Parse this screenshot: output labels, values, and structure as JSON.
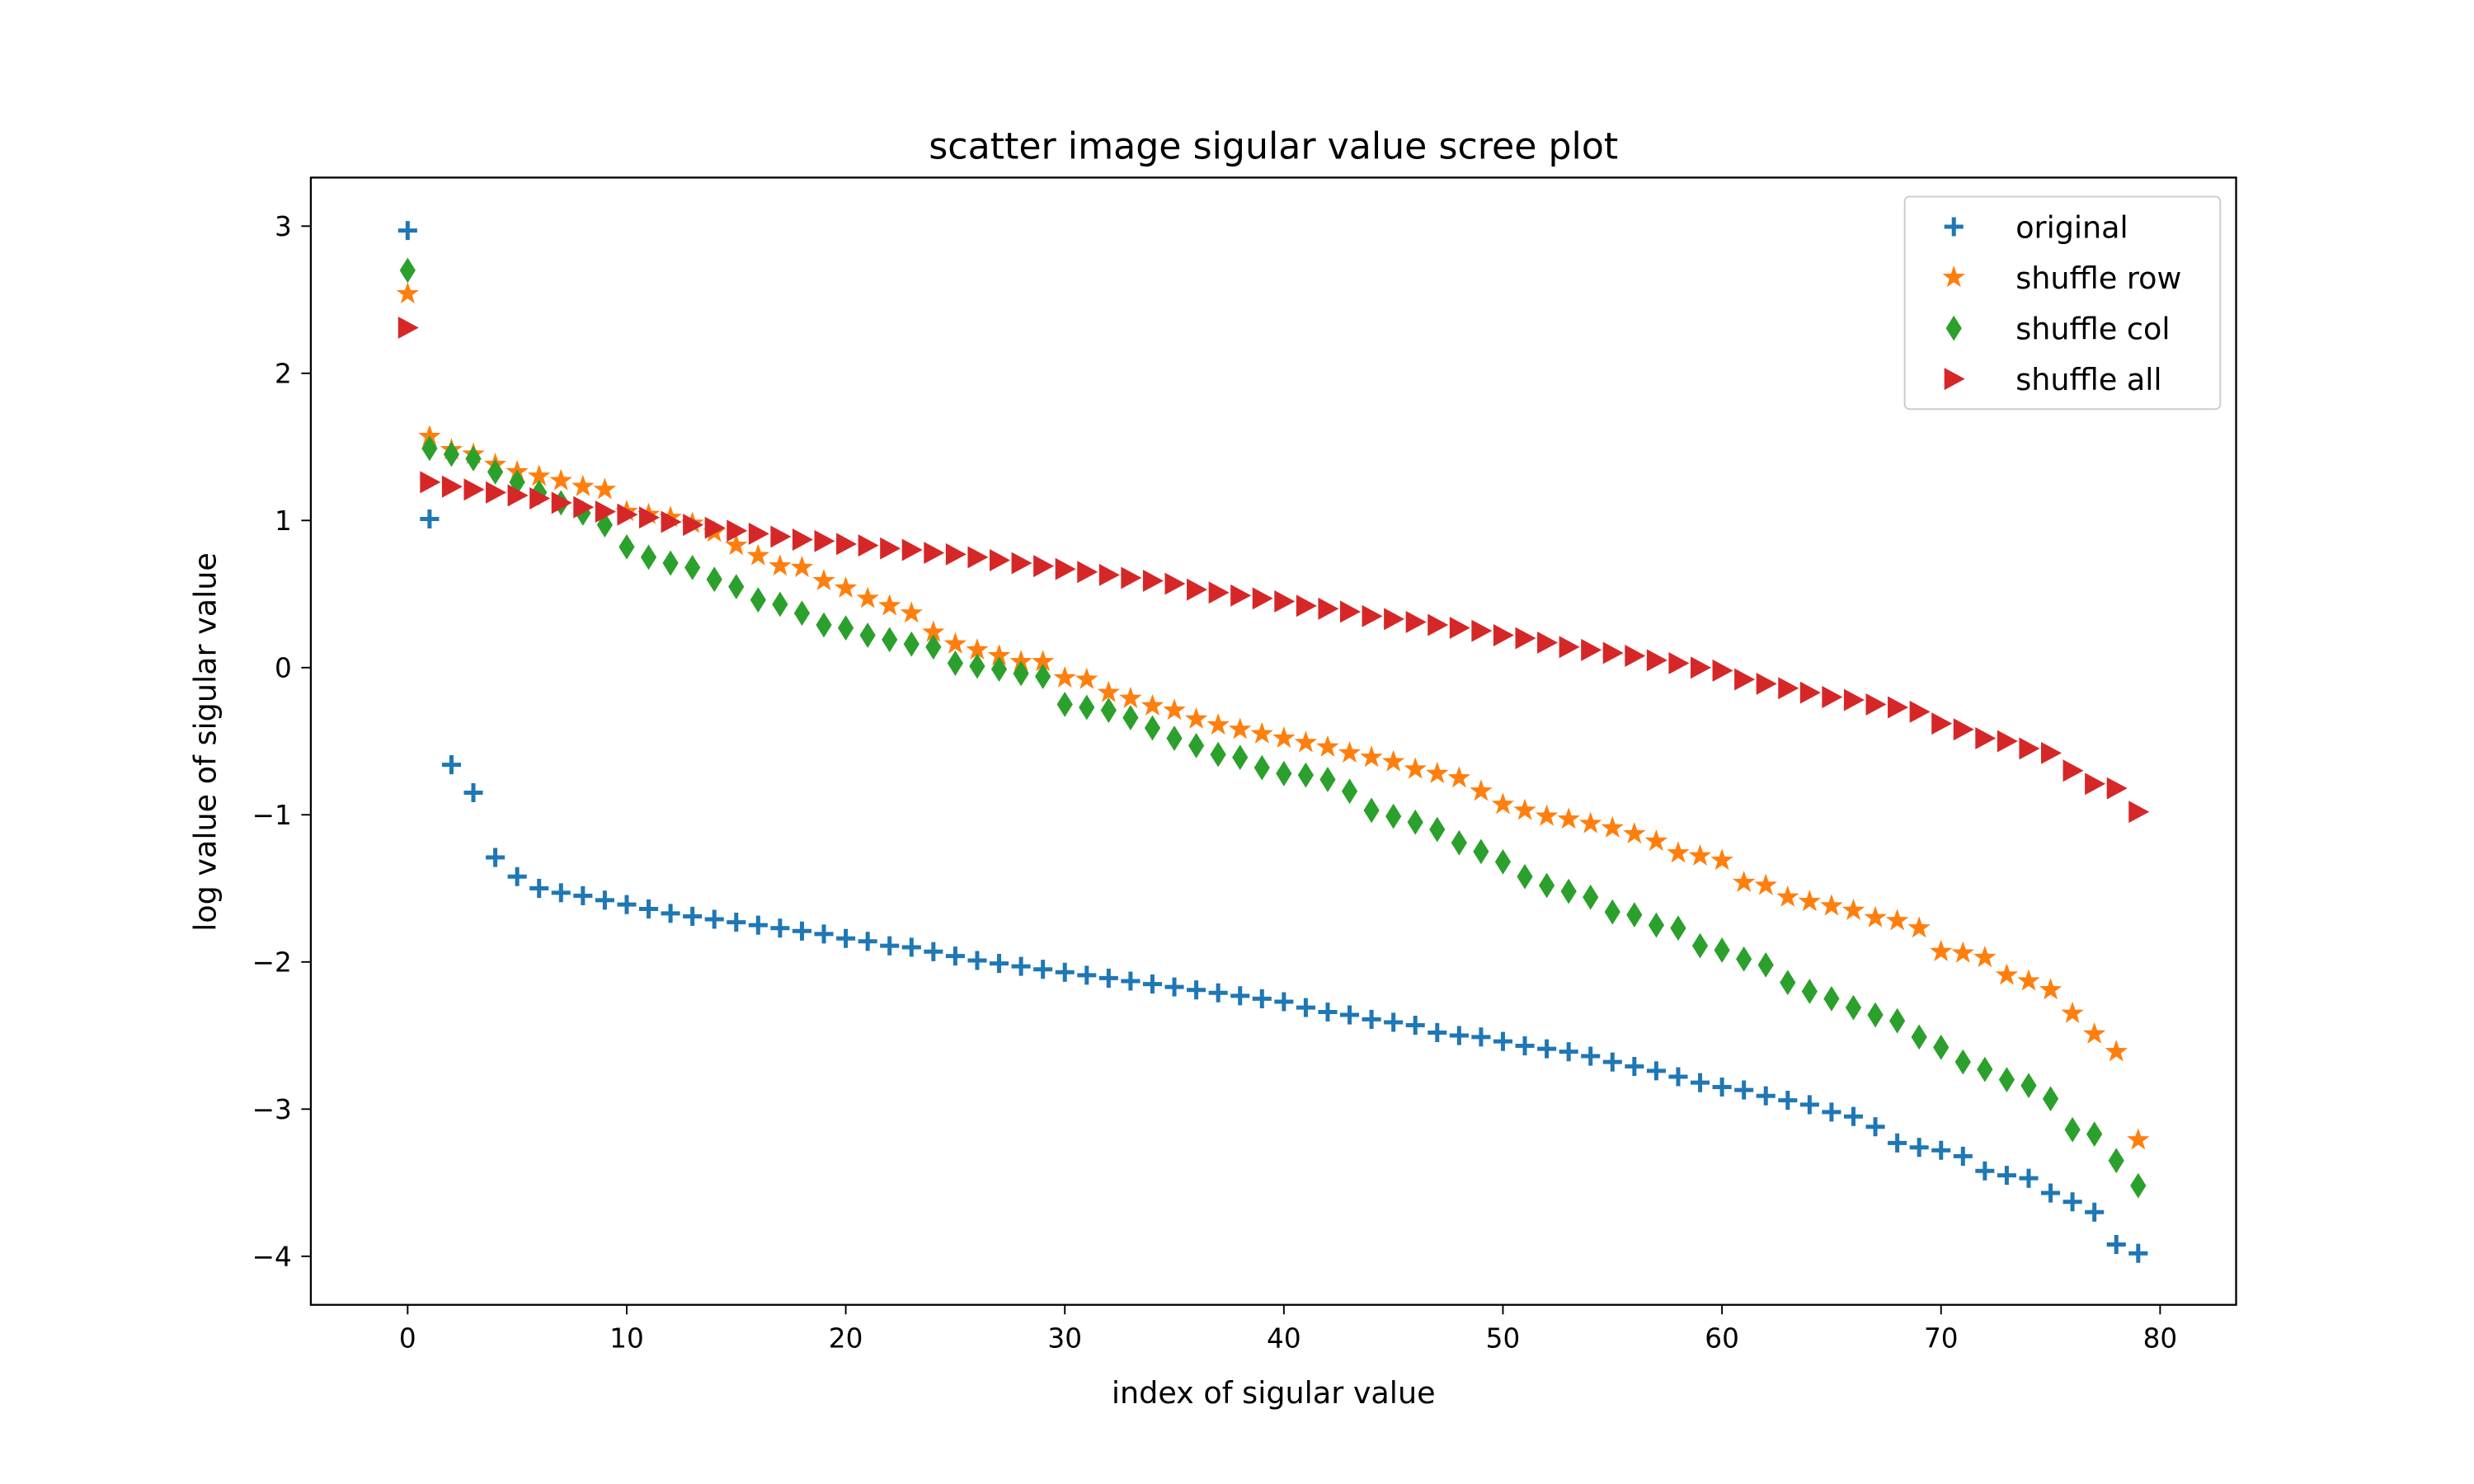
{
  "chart_data": {
    "type": "scatter",
    "title": "scatter image sigular value scree plot",
    "xlabel": "index of sigular value",
    "ylabel": "log value of sigular value",
    "xlim": [
      -4.42,
      83.47
    ],
    "ylim": [
      -4.33,
      3.33
    ],
    "xticks": [
      0,
      10,
      20,
      30,
      40,
      50,
      60,
      70,
      80
    ],
    "yticks": [
      {
        "value": -4,
        "label": "−4"
      },
      {
        "value": -3,
        "label": "−3"
      },
      {
        "value": -2,
        "label": "−2"
      },
      {
        "value": -1,
        "label": "−1"
      },
      0,
      1,
      2,
      3
    ],
    "legend": "upper right",
    "x": [
      0,
      1,
      2,
      3,
      4,
      5,
      6,
      7,
      8,
      9,
      10,
      11,
      12,
      13,
      14,
      15,
      16,
      17,
      18,
      19,
      20,
      21,
      22,
      23,
      24,
      25,
      26,
      27,
      28,
      29,
      30,
      31,
      32,
      33,
      34,
      35,
      36,
      37,
      38,
      39,
      40,
      41,
      42,
      43,
      44,
      45,
      46,
      47,
      48,
      49,
      50,
      51,
      52,
      53,
      54,
      55,
      56,
      57,
      58,
      59,
      60,
      61,
      62,
      63,
      64,
      65,
      66,
      67,
      68,
      69,
      70,
      71,
      72,
      73,
      74,
      75,
      76,
      77,
      78,
      79
    ],
    "series": [
      {
        "name": "original",
        "color": "#1f77b4",
        "marker": "plus",
        "values": [
          2.97,
          1.01,
          -0.66,
          -0.85,
          -1.29,
          -1.42,
          -1.5,
          -1.53,
          -1.55,
          -1.58,
          -1.61,
          -1.64,
          -1.67,
          -1.69,
          -1.71,
          -1.73,
          -1.75,
          -1.77,
          -1.79,
          -1.81,
          -1.84,
          -1.86,
          -1.89,
          -1.9,
          -1.93,
          -1.96,
          -1.99,
          -2.01,
          -2.03,
          -2.05,
          -2.07,
          -2.09,
          -2.11,
          -2.13,
          -2.15,
          -2.17,
          -2.19,
          -2.21,
          -2.23,
          -2.25,
          -2.27,
          -2.31,
          -2.34,
          -2.36,
          -2.39,
          -2.41,
          -2.43,
          -2.48,
          -2.5,
          -2.51,
          -2.54,
          -2.57,
          -2.59,
          -2.61,
          -2.64,
          -2.68,
          -2.71,
          -2.74,
          -2.78,
          -2.82,
          -2.85,
          -2.87,
          -2.91,
          -2.94,
          -2.97,
          -3.02,
          -3.05,
          -3.12,
          -3.23,
          -3.26,
          -3.28,
          -3.32,
          -3.42,
          -3.45,
          -3.47,
          -3.57,
          -3.63,
          -3.7,
          -3.92,
          -3.98
        ]
      },
      {
        "name": "shuffle row",
        "color": "#ff7f0e",
        "marker": "star",
        "values": [
          2.54,
          1.57,
          1.48,
          1.45,
          1.38,
          1.33,
          1.3,
          1.27,
          1.23,
          1.21,
          1.06,
          1.04,
          1.02,
          0.98,
          0.92,
          0.83,
          0.76,
          0.69,
          0.68,
          0.59,
          0.54,
          0.47,
          0.42,
          0.37,
          0.24,
          0.16,
          0.12,
          0.08,
          0.04,
          0.04,
          -0.07,
          -0.08,
          -0.17,
          -0.21,
          -0.26,
          -0.29,
          -0.35,
          -0.39,
          -0.42,
          -0.45,
          -0.48,
          -0.51,
          -0.54,
          -0.58,
          -0.61,
          -0.64,
          -0.69,
          -0.72,
          -0.75,
          -0.84,
          -0.93,
          -0.97,
          -1.01,
          -1.03,
          -1.06,
          -1.09,
          -1.13,
          -1.18,
          -1.26,
          -1.28,
          -1.31,
          -1.46,
          -1.48,
          -1.56,
          -1.59,
          -1.62,
          -1.65,
          -1.7,
          -1.72,
          -1.77,
          -1.93,
          -1.94,
          -1.97,
          -2.09,
          -2.13,
          -2.19,
          -2.35,
          -2.49,
          -2.61,
          -3.21
        ]
      },
      {
        "name": "shuffle col",
        "color": "#2ca02c",
        "marker": "diamond",
        "values": [
          2.7,
          1.49,
          1.45,
          1.42,
          1.33,
          1.26,
          1.19,
          1.12,
          1.05,
          0.97,
          0.82,
          0.75,
          0.71,
          0.68,
          0.6,
          0.55,
          0.46,
          0.43,
          0.37,
          0.29,
          0.27,
          0.22,
          0.19,
          0.16,
          0.14,
          0.03,
          0.01,
          -0.01,
          -0.04,
          -0.06,
          -0.25,
          -0.27,
          -0.29,
          -0.34,
          -0.41,
          -0.48,
          -0.53,
          -0.59,
          -0.61,
          -0.68,
          -0.72,
          -0.73,
          -0.76,
          -0.84,
          -0.97,
          -1.01,
          -1.05,
          -1.1,
          -1.19,
          -1.25,
          -1.32,
          -1.42,
          -1.48,
          -1.52,
          -1.56,
          -1.66,
          -1.68,
          -1.75,
          -1.77,
          -1.89,
          -1.92,
          -1.98,
          -2.02,
          -2.14,
          -2.2,
          -2.25,
          -2.31,
          -2.36,
          -2.4,
          -2.51,
          -2.58,
          -2.68,
          -2.73,
          -2.8,
          -2.84,
          -2.93,
          -3.14,
          -3.17,
          -3.35,
          -3.52
        ]
      },
      {
        "name": "shuffle all",
        "color": "#d62728",
        "marker": "triangle-right",
        "values": [
          2.31,
          1.26,
          1.23,
          1.21,
          1.19,
          1.17,
          1.15,
          1.12,
          1.09,
          1.06,
          1.04,
          1.02,
          0.99,
          0.97,
          0.95,
          0.93,
          0.91,
          0.89,
          0.87,
          0.86,
          0.84,
          0.83,
          0.81,
          0.8,
          0.78,
          0.77,
          0.75,
          0.73,
          0.71,
          0.69,
          0.67,
          0.65,
          0.63,
          0.61,
          0.59,
          0.57,
          0.53,
          0.51,
          0.49,
          0.47,
          0.45,
          0.42,
          0.4,
          0.38,
          0.35,
          0.33,
          0.31,
          0.29,
          0.27,
          0.25,
          0.22,
          0.2,
          0.17,
          0.14,
          0.12,
          0.1,
          0.08,
          0.05,
          0.03,
          0.0,
          -0.02,
          -0.08,
          -0.11,
          -0.14,
          -0.17,
          -0.2,
          -0.22,
          -0.25,
          -0.27,
          -0.3,
          -0.38,
          -0.42,
          -0.48,
          -0.5,
          -0.55,
          -0.58,
          -0.7,
          -0.79,
          -0.82,
          -0.98
        ]
      }
    ]
  }
}
